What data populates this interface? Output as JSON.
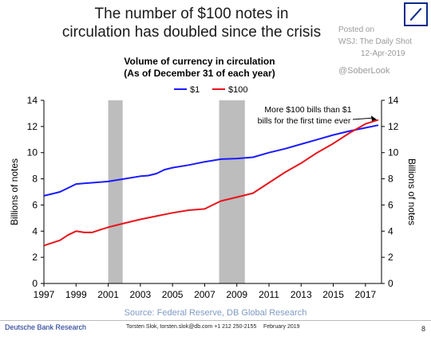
{
  "header": {
    "headline_line1": "The number of $100 notes in",
    "headline_line2": "circulation has doubled since the crisis",
    "posted_line1": "Posted on",
    "posted_line2": "WSJ: The Daily Shot",
    "posted_date": "12-Apr-2019",
    "handle": "@SoberLook"
  },
  "footer": {
    "org": "Deutsche Bank Research",
    "author": "Torsten Slok, torsten.slok@db.com +1 212 250-2155",
    "date": "February 2019",
    "page": "8"
  },
  "colors": {
    "series_1": "#1a1aff",
    "series_100": "#e8141c",
    "recession": "#bdbdbd",
    "source": "#7f9bc4"
  },
  "chart_data": {
    "type": "line",
    "title_line1": "Volume of currency in circulation",
    "title_line2": "(As of December 31 of each year)",
    "ylabel_left": "Billions of notes",
    "ylabel_right": "Billions of notes",
    "xlabel": "",
    "xlim": [
      1997,
      2018
    ],
    "ylim": [
      0,
      14
    ],
    "x_ticks": [
      "1997",
      "1999",
      "2001",
      "2003",
      "2005",
      "2007",
      "2009",
      "2011",
      "2013",
      "2015",
      "2017"
    ],
    "y_ticks": [
      "0",
      "2",
      "4",
      "6",
      "8",
      "10",
      "12",
      "14"
    ],
    "legend": [
      "$1",
      "$100"
    ],
    "legend_position": "top-center",
    "recessions": [
      [
        2001.0,
        2001.9
      ],
      [
        2007.9,
        2009.5
      ]
    ],
    "annotation_line1": "More $100 bills than $1",
    "annotation_line2": "bills for the first time ever",
    "annotation_target": [
      2017.7,
      12.35
    ],
    "source": "Source:  Federal  Reserve,  DB Global  Research",
    "series": [
      {
        "name": "$1",
        "color_key": "series_1",
        "points": [
          [
            1997,
            6.7
          ],
          [
            1997.5,
            6.85
          ],
          [
            1998,
            7.0
          ],
          [
            1998.5,
            7.3
          ],
          [
            1999,
            7.6
          ],
          [
            1999.5,
            7.65
          ],
          [
            2000,
            7.7
          ],
          [
            2001,
            7.8
          ],
          [
            2002,
            8.0
          ],
          [
            2003,
            8.2
          ],
          [
            2003.5,
            8.25
          ],
          [
            2004,
            8.4
          ],
          [
            2004.5,
            8.7
          ],
          [
            2005,
            8.85
          ],
          [
            2006,
            9.05
          ],
          [
            2007,
            9.3
          ],
          [
            2007.5,
            9.4
          ],
          [
            2008,
            9.5
          ],
          [
            2009,
            9.55
          ],
          [
            2010,
            9.65
          ],
          [
            2011,
            10.0
          ],
          [
            2012,
            10.3
          ],
          [
            2013,
            10.65
          ],
          [
            2014,
            11.0
          ],
          [
            2015,
            11.35
          ],
          [
            2016,
            11.65
          ],
          [
            2017,
            11.9
          ],
          [
            2017.8,
            12.1
          ]
        ]
      },
      {
        "name": "$100",
        "color_key": "series_100",
        "points": [
          [
            1997,
            2.9
          ],
          [
            1997.5,
            3.1
          ],
          [
            1998,
            3.3
          ],
          [
            1998.5,
            3.7
          ],
          [
            1999,
            4.0
          ],
          [
            1999.5,
            3.9
          ],
          [
            2000,
            3.9
          ],
          [
            2000.5,
            4.1
          ],
          [
            2001,
            4.3
          ],
          [
            2002,
            4.6
          ],
          [
            2003,
            4.9
          ],
          [
            2004,
            5.15
          ],
          [
            2005,
            5.4
          ],
          [
            2006,
            5.6
          ],
          [
            2007,
            5.7
          ],
          [
            2007.5,
            6.0
          ],
          [
            2008,
            6.3
          ],
          [
            2009,
            6.6
          ],
          [
            2010,
            6.9
          ],
          [
            2011,
            7.7
          ],
          [
            2012,
            8.5
          ],
          [
            2013,
            9.2
          ],
          [
            2014,
            10.0
          ],
          [
            2015,
            10.7
          ],
          [
            2016,
            11.5
          ],
          [
            2017,
            12.2
          ],
          [
            2017.8,
            12.5
          ]
        ]
      }
    ]
  }
}
